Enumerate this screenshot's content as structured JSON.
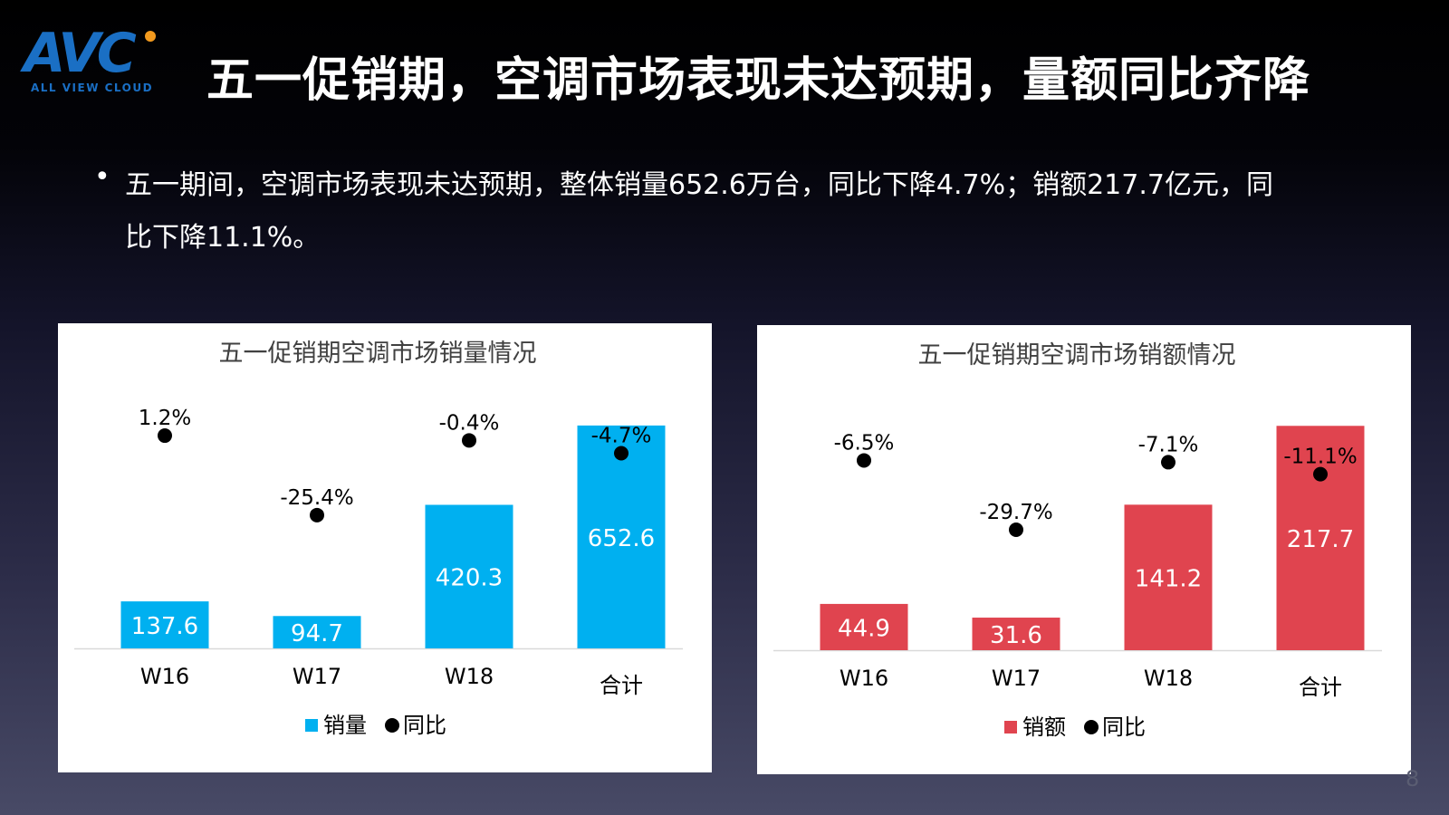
{
  "logo": {
    "word": "AVC",
    "sub": "ALL VIEW CLOUD"
  },
  "header": {
    "title": "五一促销期，空调市场表现未达预期，量额同比齐降"
  },
  "summary": {
    "bullet": "•",
    "text": "五一期间，空调市场表现未达预期，整体销量652.6万台，同比下降4.7%；销额217.7亿元，同比下降11.1%。"
  },
  "page_number": "8",
  "colors": {
    "volume": "#00b0f0",
    "amount": "#e0444f",
    "yoy": "#000000"
  },
  "chart_data": [
    {
      "type": "bar",
      "title": "五一促销期空调市场销量情况",
      "categories": [
        "W16",
        "W17",
        "W18",
        "合计"
      ],
      "series": [
        {
          "name": "销量",
          "type": "bar",
          "values": [
            137.6,
            94.7,
            420.3,
            652.6
          ],
          "labels": [
            "137.6",
            "94.7",
            "420.3",
            "652.6"
          ]
        },
        {
          "name": "同比",
          "type": "scatter",
          "values": [
            1.2,
            -25.4,
            -0.4,
            -4.7
          ],
          "labels": [
            "1.2%",
            "-25.4%",
            "-0.4%",
            "-4.7%"
          ]
        }
      ],
      "ylim_bar": [
        0,
        700
      ],
      "ylim_yoy": [
        -70,
        10
      ],
      "legend_position": "bottom",
      "grid": false
    },
    {
      "type": "bar",
      "title": "五一促销期空调市场销额情况",
      "categories": [
        "W16",
        "W17",
        "W18",
        "合计"
      ],
      "series": [
        {
          "name": "销额",
          "type": "bar",
          "values": [
            44.9,
            31.6,
            141.2,
            217.7
          ],
          "labels": [
            "44.9",
            "31.6",
            "141.2",
            "217.7"
          ]
        },
        {
          "name": "同比",
          "type": "scatter",
          "values": [
            -6.5,
            -29.7,
            -7.1,
            -11.1
          ],
          "labels": [
            "-6.5%",
            "-29.7%",
            "-7.1%",
            "-11.1%"
          ]
        }
      ],
      "ylim_bar": [
        0,
        232
      ],
      "ylim_yoy": [
        -70,
        10
      ],
      "legend_position": "bottom",
      "grid": false
    }
  ]
}
